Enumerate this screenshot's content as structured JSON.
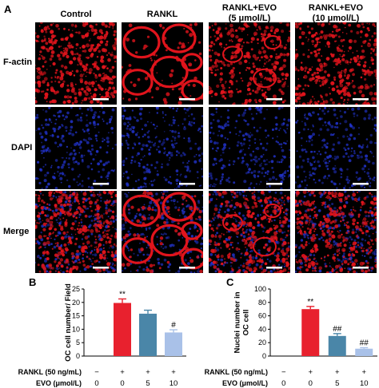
{
  "panel_a": {
    "letter": "A",
    "columns": [
      "Control",
      "RANKL",
      "RANKL+EVO\n(5 μmol/L)",
      "RANKL+EVO\n(10 μmol/L)"
    ],
    "rows": [
      "F-actin",
      "DAPI",
      "Merge"
    ],
    "colors": {
      "factin": "#e0141c",
      "dapi": "#2233cc",
      "background": "#000000",
      "scalebar": "#ffffff"
    }
  },
  "treatment_table": {
    "rankl_label": "RANKL (50 ng/mL)",
    "evo_label": "EVO (μmol/L)",
    "rankl": [
      "−",
      "+",
      "+",
      "+"
    ],
    "evo": [
      "0",
      "0",
      "5",
      "10"
    ]
  },
  "chart_data": [
    {
      "type": "bar",
      "panel": "B",
      "categories": [
        "Control",
        "RANKL",
        "RANKL+EVO 5",
        "RANKL+EVO 10"
      ],
      "values": [
        0,
        19.8,
        15.8,
        8.8
      ],
      "errors": [
        0,
        1.5,
        1.3,
        1.0
      ],
      "annotations": [
        "",
        "**",
        "",
        "#"
      ],
      "colors": [
        "#e8212e",
        "#e8212e",
        "#4a86a8",
        "#a9c1e8"
      ],
      "ylabel": "OC cell number/ Field",
      "ylim": [
        0,
        25
      ],
      "yticks": [
        0,
        5,
        10,
        15,
        20,
        25
      ]
    },
    {
      "type": "bar",
      "panel": "C",
      "categories": [
        "Control",
        "RANKL",
        "RANKL+EVO 5",
        "RANKL+EVO 10"
      ],
      "values": [
        0,
        70,
        30,
        11
      ],
      "errors": [
        0,
        4,
        3.5,
        1.5
      ],
      "annotations": [
        "",
        "**",
        "##",
        "##"
      ],
      "colors": [
        "#e8212e",
        "#e8212e",
        "#4a86a8",
        "#a9c1e8"
      ],
      "ylabel": "Nuclei number in\nOC cell",
      "ylim": [
        0,
        100
      ],
      "yticks": [
        0,
        20,
        40,
        60,
        80,
        100
      ]
    }
  ]
}
